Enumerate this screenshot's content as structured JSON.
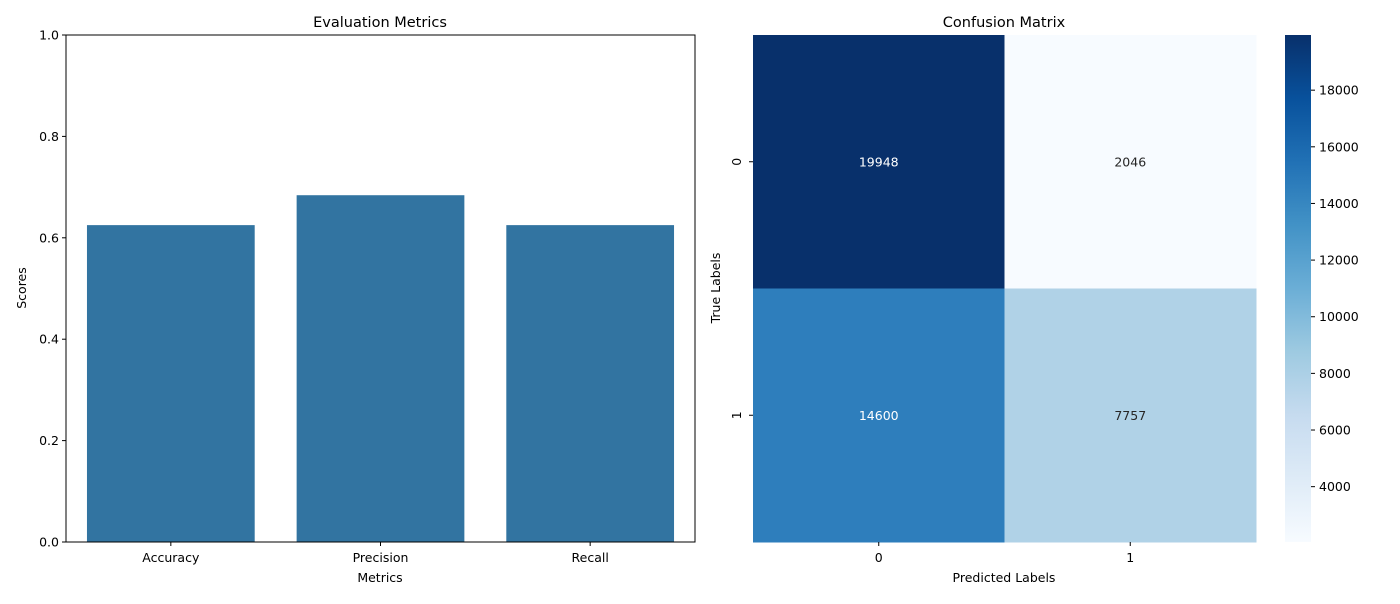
{
  "chart_data": [
    {
      "type": "bar",
      "title": "Evaluation Metrics",
      "xlabel": "Metrics",
      "ylabel": "Scores",
      "categories": [
        "Accuracy",
        "Precision",
        "Recall"
      ],
      "values": [
        0.625,
        0.684,
        0.625
      ],
      "ylim": [
        0,
        1.0
      ],
      "yticks": [
        "0.0",
        "0.2",
        "0.4",
        "0.6",
        "0.8",
        "1.0"
      ],
      "bar_color": "#3274a1",
      "grid": false
    },
    {
      "type": "heatmap",
      "title": "Confusion Matrix",
      "xlabel": "Predicted Labels",
      "ylabel": "True Labels",
      "x_categories": [
        "0",
        "1"
      ],
      "y_categories": [
        "0",
        "1"
      ],
      "values": [
        [
          19948,
          2046
        ],
        [
          14600,
          7757
        ]
      ],
      "colormap": "Blues",
      "colorbar_range": [
        2046,
        19948
      ],
      "colorbar_ticks": [
        "4000",
        "6000",
        "8000",
        "10000",
        "12000",
        "14000",
        "16000",
        "18000"
      ]
    }
  ]
}
